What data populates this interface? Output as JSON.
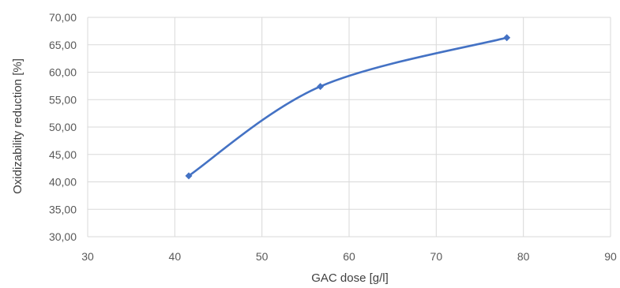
{
  "chart_data": {
    "type": "scatter",
    "title": "",
    "xlabel": "GAC dose [g/l]",
    "ylabel": "Oxidizability reduction [%]",
    "xlim": [
      30,
      90
    ],
    "ylim": [
      30,
      70
    ],
    "x_ticks": [
      "30",
      "40",
      "50",
      "60",
      "70",
      "80",
      "90"
    ],
    "y_ticks": [
      "30,00",
      "35,00",
      "40,00",
      "45,00",
      "50,00",
      "55,00",
      "60,00",
      "65,00",
      "70,00"
    ],
    "grid": true,
    "legend": "none",
    "line_style": "smoothed line with diamond markers",
    "series": [
      {
        "color": "#4472c4",
        "points": [
          {
            "x": 41.6,
            "y": 41.1
          },
          {
            "x": 56.7,
            "y": 57.4
          },
          {
            "x": 78.1,
            "y": 66.3
          }
        ]
      }
    ]
  }
}
